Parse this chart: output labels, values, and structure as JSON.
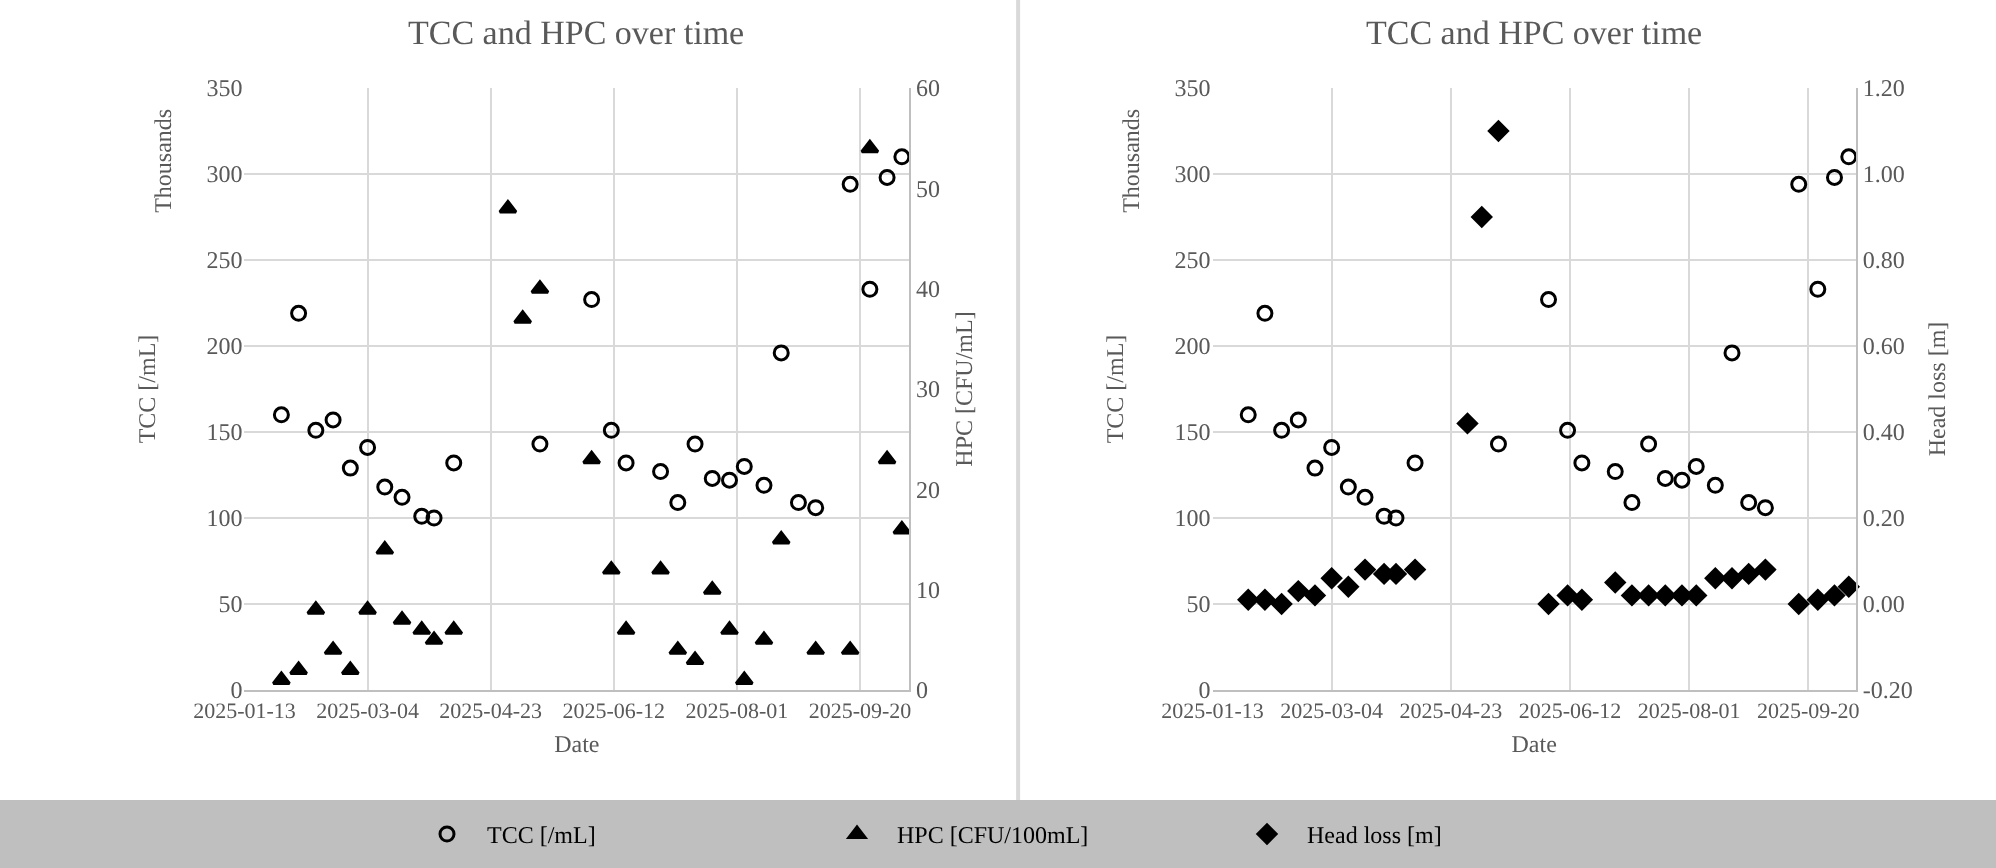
{
  "chart_data": [
    {
      "type": "scatter",
      "title": "TCC and HPC over time",
      "xlabel": "Date",
      "ylabel": "TCC [/mL]",
      "y2label": "HPC [CFU/mL]",
      "annotations": [
        "Thousands"
      ],
      "x": [
        "2025-01-28",
        "2025-02-04",
        "2025-02-11",
        "2025-02-18",
        "2025-02-25",
        "2025-03-04",
        "2025-03-11",
        "2025-03-18",
        "2025-03-26",
        "2025-03-31",
        "2025-04-08",
        "2025-04-30",
        "2025-05-06",
        "2025-05-13",
        "2025-06-03",
        "2025-06-11",
        "2025-06-17",
        "2025-07-01",
        "2025-07-08",
        "2025-07-15",
        "2025-07-22",
        "2025-07-29",
        "2025-08-04",
        "2025-08-12",
        "2025-08-19",
        "2025-08-26",
        "2025-09-02",
        "2025-09-16",
        "2025-09-24",
        "2025-10-01",
        "2025-10-07"
      ],
      "series": [
        {
          "name": "TCC [/mL]",
          "color": "#000000",
          "marker": "circle",
          "values": [
            160,
            219,
            151,
            157,
            129,
            141,
            118,
            112,
            101,
            100,
            132,
            null,
            null,
            143,
            227,
            151,
            132,
            127,
            109,
            143,
            123,
            122,
            130,
            119,
            196,
            109,
            106,
            294,
            233,
            298,
            310
          ]
        },
        {
          "name": "HPC [CFU/100mL]",
          "color": "#000000",
          "marker": "triangle",
          "axis": "y2",
          "values": [
            1,
            2,
            8,
            4,
            2,
            8,
            14,
            7,
            6,
            5,
            6,
            48,
            37,
            40,
            23,
            12,
            6,
            12,
            4,
            3,
            10,
            6,
            1,
            5,
            15,
            null,
            4,
            4,
            54,
            23,
            16
          ]
        }
      ],
      "xlim": [
        "2025-01-13",
        "2025-10-10"
      ],
      "xticks": [
        "2025-01-13",
        "2025-03-04",
        "2025-04-23",
        "2025-06-12",
        "2025-08-01",
        "2025-09-20"
      ],
      "ylim": [
        0,
        350
      ],
      "yticks": [
        0,
        50,
        100,
        150,
        200,
        250,
        300,
        350
      ],
      "y2lim": [
        0,
        60
      ],
      "y2ticks": [
        0,
        10,
        20,
        30,
        40,
        50,
        60
      ],
      "grid": true,
      "legend": "bottom"
    },
    {
      "type": "scatter",
      "title": "TCC and HPC over time",
      "xlabel": "Date",
      "ylabel": "TCC [/mL]",
      "y2label": "Head loss [m]",
      "annotations": [
        "Thousands"
      ],
      "x": [
        "2025-01-28",
        "2025-02-04",
        "2025-02-11",
        "2025-02-18",
        "2025-02-25",
        "2025-03-04",
        "2025-03-11",
        "2025-03-18",
        "2025-03-26",
        "2025-03-31",
        "2025-04-08",
        "2025-04-30",
        "2025-05-06",
        "2025-05-13",
        "2025-06-03",
        "2025-06-11",
        "2025-06-17",
        "2025-07-01",
        "2025-07-08",
        "2025-07-15",
        "2025-07-22",
        "2025-07-29",
        "2025-08-04",
        "2025-08-12",
        "2025-08-19",
        "2025-08-26",
        "2025-09-02",
        "2025-09-16",
        "2025-09-24",
        "2025-10-01",
        "2025-10-07"
      ],
      "series": [
        {
          "color": "#000000",
          "marker": "circle",
          "values": [
            160,
            219,
            151,
            157,
            129,
            141,
            118,
            112,
            101,
            100,
            132,
            null,
            null,
            143,
            227,
            151,
            132,
            127,
            109,
            143,
            123,
            122,
            130,
            119,
            196,
            109,
            106,
            294,
            233,
            298,
            310
          ]
        },
        {
          "name": "Head loss [m]",
          "color": "#000000",
          "marker": "diamond",
          "axis": "y2",
          "values": [
            0.01,
            0.01,
            0.0,
            0.03,
            0.02,
            0.06,
            0.04,
            0.08,
            0.07,
            0.07,
            0.08,
            0.42,
            0.9,
            1.1,
            0.0,
            0.02,
            0.01,
            0.05,
            0.02,
            0.02,
            0.02,
            0.02,
            0.02,
            0.06,
            0.06,
            0.07,
            0.08,
            0.0,
            0.01,
            0.02,
            0.04
          ]
        }
      ],
      "xlim": [
        "2025-01-13",
        "2025-10-10"
      ],
      "xticks": [
        "2025-01-13",
        "2025-03-04",
        "2025-04-23",
        "2025-06-12",
        "2025-08-01",
        "2025-09-20"
      ],
      "ylim": [
        0,
        350
      ],
      "yticks": [
        0,
        50,
        100,
        150,
        200,
        250,
        300,
        350
      ],
      "y2lim": [
        -0.2,
        1.2
      ],
      "y2ticks": [
        {
          "value": -0.2,
          "label": "-0.20"
        },
        {
          "value": 0,
          "label": "0.00"
        },
        {
          "value": 0.2,
          "label": "0.20"
        },
        {
          "value": 0.4,
          "label": "0.40"
        },
        {
          "value": 0.6,
          "label": "0.60"
        },
        {
          "value": 0.8,
          "label": "0.80"
        },
        {
          "value": 1.0,
          "label": "1.00"
        },
        {
          "value": 1.2,
          "label": "1.20"
        }
      ],
      "grid": true,
      "legend": "bottom"
    }
  ]
}
